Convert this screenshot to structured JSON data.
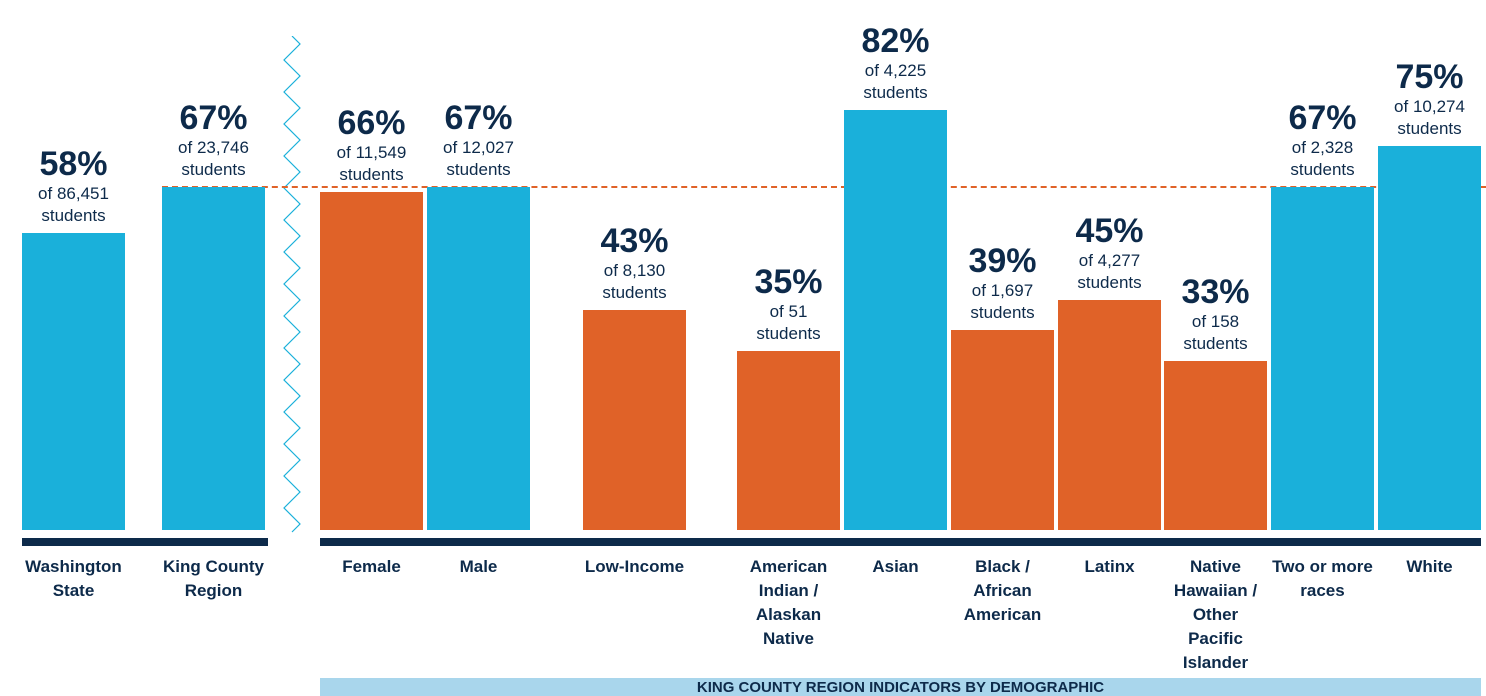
{
  "chart_data": {
    "type": "bar",
    "categories": [
      "Washington State",
      "King County Region",
      "Female",
      "Male",
      "Low-Income",
      "American Indian / Alaskan Native",
      "Asian",
      "Black / African American",
      "Latinx",
      "Native Hawaiian / Other Pacific Islander",
      "Two or more races",
      "White"
    ],
    "values": [
      58,
      67,
      66,
      67,
      43,
      35,
      82,
      39,
      45,
      33,
      67,
      75
    ],
    "value_labels": [
      "58%",
      "67%",
      "66%",
      "67%",
      "43%",
      "35%",
      "82%",
      "39%",
      "45%",
      "33%",
      "67%",
      "75%"
    ],
    "count_labels": [
      "of 86,451 students",
      "of 23,746 students",
      "of 11,549 students",
      "of 12,027 students",
      "of 8,130 students",
      "of 51 students",
      "of 4,225 students",
      "of 1,697 students",
      "of 4,277 students",
      "of 158 students",
      "of 2,328 students",
      "of 10,274 students"
    ],
    "colors": [
      "#1ab0da",
      "#1ab0da",
      "#e06228",
      "#1ab0da",
      "#e06228",
      "#e06228",
      "#1ab0da",
      "#e06228",
      "#e06228",
      "#e06228",
      "#1ab0da",
      "#1ab0da"
    ],
    "reference_value": 67,
    "reference_color": "#e06228",
    "group_label": "KING COUNTY REGION INDICATORS BY DEMOGRAPHIC"
  }
}
